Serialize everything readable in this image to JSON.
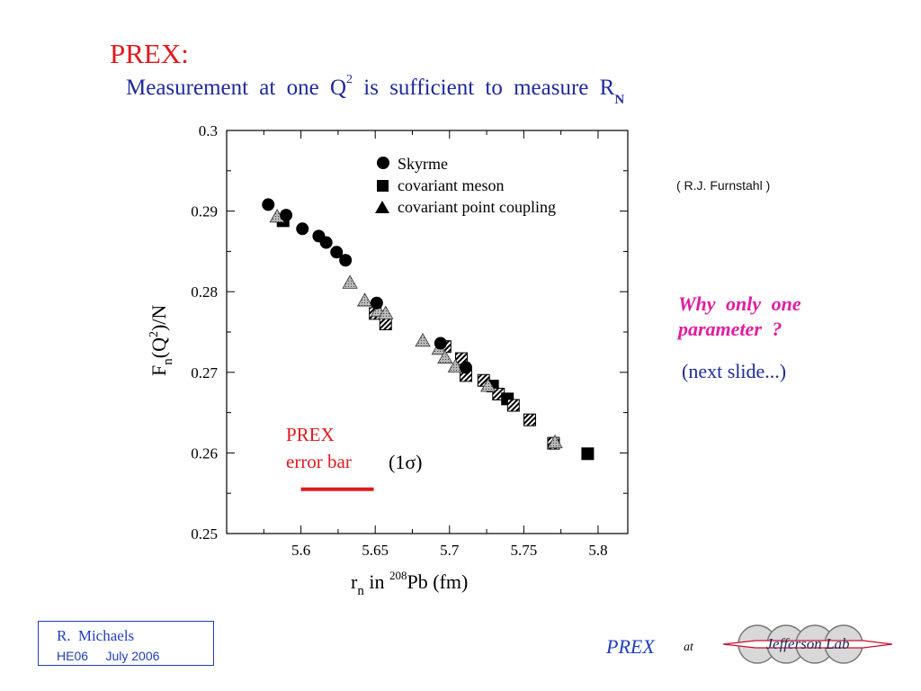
{
  "slide": {
    "title": "PREX:",
    "subtitle_main": "Measurement  at  one  Q",
    "subtitle_sup": "2",
    "subtitle_rest": "  is  sufficient  to  measure  R",
    "subtitle_sub": "N",
    "credit": "( R.J.  Furnstahl )",
    "why_text": "Why  only  one parameter  ?",
    "next_text": "(next slide...)",
    "footer": {
      "author": "R.  Michaels",
      "conf": "HE06",
      "date": "July  2006",
      "prex": "PREX",
      "at": "at",
      "logo_text": "Jefferson Lab"
    }
  },
  "chart_data": {
    "type": "scatter",
    "xlabel": "r_n in 208Pb (fm)",
    "ylabel": "F_n(Q^2)/N",
    "xlim": [
      5.55,
      5.82
    ],
    "ylim": [
      0.25,
      0.3
    ],
    "x_ticks": [
      "5.6",
      "5.65",
      "5.7",
      "5.75",
      "5.8"
    ],
    "y_ticks": [
      "0.25",
      "0.26",
      "0.27",
      "0.28",
      "0.29",
      "0.3"
    ],
    "legend_position": "top-right",
    "series": [
      {
        "name": "Skyrme",
        "marker": "circle",
        "x": [
          5.578,
          5.59,
          5.601,
          5.612,
          5.617,
          5.624,
          5.63,
          5.651,
          5.694,
          5.711
        ],
        "y": [
          0.2908,
          0.2895,
          0.2878,
          0.2869,
          0.2861,
          0.2849,
          0.2839,
          0.2786,
          0.2736,
          0.2706
        ]
      },
      {
        "name": "covariant meson",
        "marker": "square",
        "x": [
          5.588,
          5.65,
          5.657,
          5.697,
          5.708,
          5.711,
          5.723,
          5.729,
          5.733,
          5.739,
          5.743,
          5.754,
          5.77,
          5.793
        ],
        "y": [
          0.2888,
          0.2773,
          0.276,
          0.2732,
          0.2717,
          0.2696,
          0.269,
          0.2683,
          0.2673,
          0.2667,
          0.2659,
          0.2641,
          0.2612,
          0.2599
        ]
      },
      {
        "name": "covariant point coupling",
        "marker": "triangle",
        "x": [
          5.584,
          5.633,
          5.643,
          5.652,
          5.657,
          5.682,
          5.693,
          5.697,
          5.704,
          5.726,
          5.771
        ],
        "y": [
          0.2893,
          0.2811,
          0.2789,
          0.2776,
          0.2773,
          0.2739,
          0.2729,
          0.2718,
          0.2707,
          0.2683,
          0.2613
        ]
      }
    ],
    "annotation": {
      "line1": "PREX",
      "line2": "error bar",
      "sigma_label": "(1σ)",
      "bar_x": [
        5.6,
        5.649
      ],
      "bar_y": 0.2555
    }
  }
}
